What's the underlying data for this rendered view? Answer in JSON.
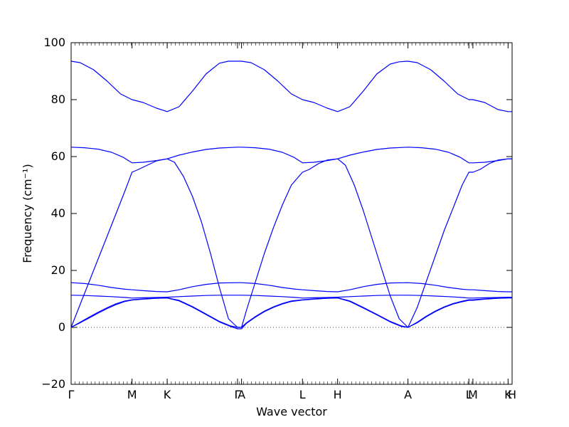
{
  "chart_data": {
    "type": "line",
    "xlabel": "Wave vector",
    "ylabel": "Frequency (cm⁻¹)",
    "ylim": [
      -20,
      100
    ],
    "yticks": [
      -20,
      0,
      20,
      40,
      60,
      80,
      100
    ],
    "x_path_labels": [
      {
        "label": "Γ",
        "x": 0.0
      },
      {
        "label": "M",
        "x": 0.1355
      },
      {
        "label": "K",
        "x": 0.2137
      },
      {
        "label": "Γ",
        "x": 0.3702
      },
      {
        "label": "A",
        "x": 0.3792
      },
      {
        "label": "L",
        "x": 0.5147
      },
      {
        "label": "H",
        "x": 0.5929
      },
      {
        "label": "A",
        "x": 0.7494
      },
      {
        "label": "L",
        "x": 0.8849
      },
      {
        "label": "M",
        "x": 0.8939
      },
      {
        "label": "K",
        "x": 0.9721
      },
      {
        "label": "H",
        "x": 0.9811
      }
    ],
    "xlim": [
      0,
      0.9811
    ],
    "color": "#0000ff",
    "zero_line": true,
    "series": [
      {
        "x": [
          0,
          0.02,
          0.05,
          0.08,
          0.11,
          0.1355,
          0.16,
          0.19,
          0.2137,
          0.24,
          0.27,
          0.3,
          0.33,
          0.35,
          0.3702,
          0.3792,
          0.4,
          0.43,
          0.46,
          0.49,
          0.5147,
          0.54,
          0.57,
          0.5929,
          0.62,
          0.65,
          0.68,
          0.71,
          0.73,
          0.7494,
          0.77,
          0.8,
          0.83,
          0.86,
          0.8849,
          0.8939,
          0.92,
          0.95,
          0.9721,
          0.9811
        ],
        "y": [
          93.5,
          93.0,
          90.5,
          86.5,
          82.0,
          80.0,
          79.0,
          77.0,
          75.8,
          77.5,
          83.0,
          89.0,
          92.8,
          93.5,
          93.5,
          93.5,
          93.0,
          90.5,
          86.5,
          82.0,
          80.0,
          79.0,
          77.0,
          75.8,
          77.5,
          83.0,
          89.0,
          92.5,
          93.3,
          93.5,
          93.0,
          90.5,
          86.5,
          82.0,
          80.0,
          80.0,
          79.0,
          76.5,
          75.8,
          75.8
        ]
      },
      {
        "x": [
          0,
          0.03,
          0.06,
          0.09,
          0.115,
          0.1355,
          0.16,
          0.19,
          0.2137,
          0.24,
          0.27,
          0.3,
          0.33,
          0.3702,
          0.3792,
          0.41,
          0.44,
          0.47,
          0.495,
          0.5147,
          0.54,
          0.57,
          0.5929,
          0.62,
          0.65,
          0.68,
          0.71,
          0.7494,
          0.78,
          0.81,
          0.84,
          0.865,
          0.8849,
          0.8939,
          0.92,
          0.95,
          0.9721,
          0.9811
        ],
        "y": [
          63.3,
          63.1,
          62.6,
          61.5,
          59.8,
          57.8,
          58.0,
          58.6,
          59.2,
          60.5,
          61.6,
          62.5,
          63.0,
          63.3,
          63.3,
          63.1,
          62.6,
          61.5,
          59.8,
          57.8,
          58.0,
          58.6,
          59.2,
          60.5,
          61.6,
          62.5,
          63.0,
          63.3,
          63.1,
          62.6,
          61.5,
          59.8,
          57.8,
          57.8,
          58.0,
          58.6,
          59.2,
          59.2
        ]
      },
      {
        "x": [
          0,
          0.02,
          0.04,
          0.06,
          0.08,
          0.1,
          0.12,
          0.1355,
          0.15,
          0.17,
          0.19,
          0.2137,
          0.23,
          0.25,
          0.27,
          0.29,
          0.31,
          0.33,
          0.35,
          0.3702,
          0.3792,
          0.39,
          0.41,
          0.43,
          0.45,
          0.47,
          0.49,
          0.5147,
          0.53,
          0.55,
          0.57,
          0.5929,
          0.61,
          0.63,
          0.65,
          0.67,
          0.69,
          0.71,
          0.73,
          0.7494,
          0.77,
          0.79,
          0.81,
          0.83,
          0.85,
          0.87,
          0.8849,
          0.8939,
          0.91,
          0.93,
          0.95,
          0.9721,
          0.9811
        ],
        "y": [
          0,
          8.0,
          16.0,
          24.0,
          32.0,
          40.0,
          48.0,
          54.5,
          55.5,
          57.0,
          58.5,
          59.2,
          58.0,
          53.0,
          46.0,
          37.0,
          26.0,
          14.0,
          3.0,
          0,
          0,
          6.0,
          16.0,
          26.0,
          35.0,
          43.0,
          50.0,
          54.5,
          55.5,
          57.5,
          58.8,
          59.2,
          57.0,
          50.0,
          41.0,
          31.0,
          21.0,
          11.0,
          3.0,
          0,
          7.0,
          16.0,
          25.0,
          34.0,
          42.0,
          50.0,
          54.5,
          54.5,
          55.5,
          57.5,
          58.8,
          59.2,
          59.2
        ]
      },
      {
        "x": [
          0,
          0.03,
          0.06,
          0.09,
          0.12,
          0.1355,
          0.16,
          0.19,
          0.2137,
          0.24,
          0.27,
          0.3,
          0.33,
          0.3702,
          0.3792,
          0.41,
          0.44,
          0.47,
          0.5,
          0.5147,
          0.54,
          0.57,
          0.5929,
          0.62,
          0.65,
          0.68,
          0.71,
          0.7494,
          0.78,
          0.81,
          0.84,
          0.87,
          0.8849,
          0.8939,
          0.92,
          0.95,
          0.9721,
          0.9811
        ],
        "y": [
          15.7,
          15.4,
          14.8,
          14.0,
          13.4,
          13.2,
          12.9,
          12.6,
          12.5,
          13.2,
          14.3,
          15.1,
          15.6,
          15.7,
          15.7,
          15.4,
          14.8,
          14.0,
          13.4,
          13.2,
          12.9,
          12.6,
          12.5,
          13.2,
          14.3,
          15.1,
          15.6,
          15.7,
          15.4,
          14.8,
          14.0,
          13.4,
          13.2,
          13.2,
          12.9,
          12.6,
          12.5,
          12.5
        ]
      },
      {
        "x": [
          0,
          0.03,
          0.06,
          0.09,
          0.12,
          0.1355,
          0.16,
          0.19,
          0.2137,
          0.24,
          0.27,
          0.3,
          0.33,
          0.3702,
          0.3792,
          0.41,
          0.44,
          0.47,
          0.5,
          0.5147,
          0.54,
          0.57,
          0.5929,
          0.62,
          0.65,
          0.68,
          0.71,
          0.7494,
          0.78,
          0.81,
          0.84,
          0.87,
          0.8849,
          0.8939,
          0.92,
          0.95,
          0.9721,
          0.9811
        ],
        "y": [
          11.3,
          11.2,
          11.0,
          10.8,
          10.5,
          10.3,
          10.4,
          10.5,
          10.6,
          10.8,
          11.0,
          11.2,
          11.3,
          11.3,
          11.3,
          11.2,
          11.0,
          10.8,
          10.5,
          10.3,
          10.4,
          10.5,
          10.6,
          10.8,
          11.0,
          11.2,
          11.3,
          11.3,
          11.2,
          11.0,
          10.8,
          10.5,
          10.3,
          10.3,
          10.4,
          10.5,
          10.6,
          10.6
        ]
      },
      {
        "x": [
          0,
          0.02,
          0.04,
          0.06,
          0.08,
          0.1,
          0.12,
          0.1355,
          0.16,
          0.19,
          0.2137,
          0.24,
          0.27,
          0.3,
          0.33,
          0.355,
          0.3702,
          0.3792,
          0.39,
          0.41,
          0.43,
          0.45,
          0.47,
          0.49,
          0.5147,
          0.54,
          0.57,
          0.5929,
          0.62,
          0.65,
          0.68,
          0.71,
          0.735,
          0.7494,
          0.77,
          0.79,
          0.81,
          0.83,
          0.85,
          0.87,
          0.8849,
          0.8939,
          0.92,
          0.95,
          0.9721,
          0.9811
        ],
        "y": [
          0,
          1.8,
          3.6,
          5.3,
          6.9,
          8.3,
          9.3,
          9.7,
          10.0,
          10.3,
          10.4,
          9.5,
          7.3,
          4.7,
          2.1,
          0.5,
          0,
          0,
          1.6,
          3.8,
          5.7,
          7.2,
          8.4,
          9.3,
          9.7,
          10.0,
          10.3,
          10.4,
          9.3,
          7.0,
          4.6,
          2.1,
          0.5,
          0,
          1.8,
          3.9,
          5.7,
          7.2,
          8.4,
          9.2,
          9.7,
          9.7,
          10.0,
          10.3,
          10.4,
          10.4
        ]
      },
      {
        "x": [
          0,
          0.02,
          0.04,
          0.06,
          0.08,
          0.1,
          0.12,
          0.1355,
          0.16,
          0.19,
          0.2137,
          0.24,
          0.27,
          0.3,
          0.33,
          0.355,
          0.3702,
          0.3792,
          0.39,
          0.41,
          0.43,
          0.45,
          0.47,
          0.49,
          0.5147,
          0.54,
          0.57,
          0.5929,
          0.62,
          0.65,
          0.68,
          0.71,
          0.735,
          0.7494,
          0.77,
          0.79,
          0.81,
          0.83,
          0.85,
          0.87,
          0.8849,
          0.8939,
          0.92,
          0.95,
          0.9721,
          0.9811
        ],
        "y": [
          0,
          1.6,
          3.3,
          5.0,
          6.6,
          8.0,
          9.1,
          9.6,
          9.9,
          10.2,
          10.3,
          9.3,
          7.1,
          4.5,
          1.9,
          0.3,
          -0.5,
          -0.5,
          1.4,
          3.6,
          5.5,
          7.0,
          8.2,
          9.1,
          9.6,
          9.9,
          10.2,
          10.3,
          9.1,
          6.8,
          4.4,
          1.9,
          0.3,
          0,
          1.6,
          3.7,
          5.5,
          7.0,
          8.2,
          9.0,
          9.5,
          9.5,
          9.9,
          10.2,
          10.3,
          10.3
        ]
      }
    ]
  }
}
